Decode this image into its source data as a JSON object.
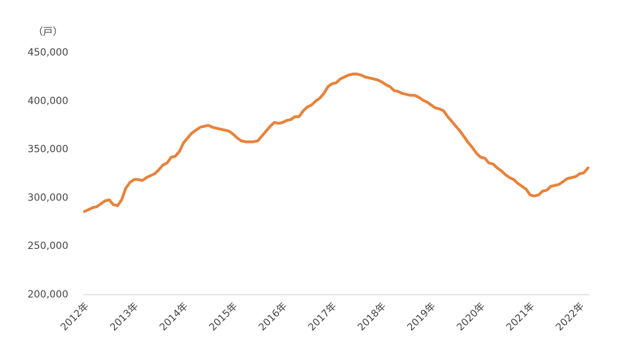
{
  "chart_data": {
    "type": "line",
    "unit_label": "（戸）",
    "categories": [
      "2012年",
      null,
      null,
      null,
      null,
      null,
      null,
      null,
      null,
      null,
      null,
      null,
      "2013年",
      null,
      null,
      null,
      null,
      null,
      null,
      null,
      null,
      null,
      null,
      null,
      "2014年",
      null,
      null,
      null,
      null,
      null,
      null,
      null,
      null,
      null,
      null,
      null,
      "2015年",
      null,
      null,
      null,
      null,
      null,
      null,
      null,
      null,
      null,
      null,
      null,
      "2016年",
      null,
      null,
      null,
      null,
      null,
      null,
      null,
      null,
      null,
      null,
      null,
      "2017年",
      null,
      null,
      null,
      null,
      null,
      null,
      null,
      null,
      null,
      null,
      null,
      "2018年",
      null,
      null,
      null,
      null,
      null,
      null,
      null,
      null,
      null,
      null,
      null,
      "2019年",
      null,
      null,
      null,
      null,
      null,
      null,
      null,
      null,
      null,
      null,
      null,
      "2020年",
      null,
      null,
      null,
      null,
      null,
      null,
      null,
      null,
      null,
      null,
      null,
      "2021年",
      null,
      null,
      null,
      null,
      null,
      null,
      null,
      null,
      null,
      null,
      null,
      "2022年",
      null,
      null
    ],
    "series": [
      {
        "color": "#e8823a",
        "values": [
          286000,
          288000,
          290000,
          291000,
          294000,
          297000,
          298000,
          293000,
          292000,
          298000,
          310000,
          316000,
          319000,
          319000,
          318000,
          321000,
          323000,
          325000,
          329000,
          334000,
          336000,
          342000,
          343000,
          348000,
          357000,
          362000,
          367000,
          370000,
          373000,
          374000,
          375000,
          373000,
          372000,
          371000,
          370000,
          369000,
          366000,
          362000,
          359000,
          358000,
          358000,
          358000,
          359000,
          364000,
          369000,
          374000,
          378000,
          377000,
          378000,
          380000,
          381000,
          384000,
          384000,
          390000,
          394000,
          396000,
          400000,
          403000,
          408000,
          415000,
          418000,
          419000,
          423000,
          425000,
          427000,
          428000,
          428000,
          427000,
          425000,
          424000,
          423000,
          422000,
          420000,
          417000,
          415000,
          411000,
          410000,
          408000,
          407000,
          406000,
          406000,
          404000,
          401000,
          399000,
          396000,
          393000,
          392000,
          390000,
          384000,
          379000,
          374000,
          369000,
          363000,
          357000,
          352000,
          346000,
          342000,
          341000,
          336000,
          335000,
          331000,
          328000,
          324000,
          321000,
          319000,
          315000,
          312000,
          309000,
          303000,
          302000,
          303000,
          307000,
          308000,
          312000,
          313000,
          314000,
          317000,
          320000,
          321000,
          322000,
          325000,
          326000,
          331000
        ]
      }
    ],
    "ylim": [
      200000,
      450000
    ],
    "yticks": [
      {
        "value": 200000,
        "label": "200,000"
      },
      {
        "value": 250000,
        "label": "250,000"
      },
      {
        "value": 300000,
        "label": "300,000"
      },
      {
        "value": 350000,
        "label": "350,000"
      },
      {
        "value": 400000,
        "label": "400,000"
      },
      {
        "value": 450000,
        "label": "450,000"
      }
    ],
    "grid": false
  }
}
